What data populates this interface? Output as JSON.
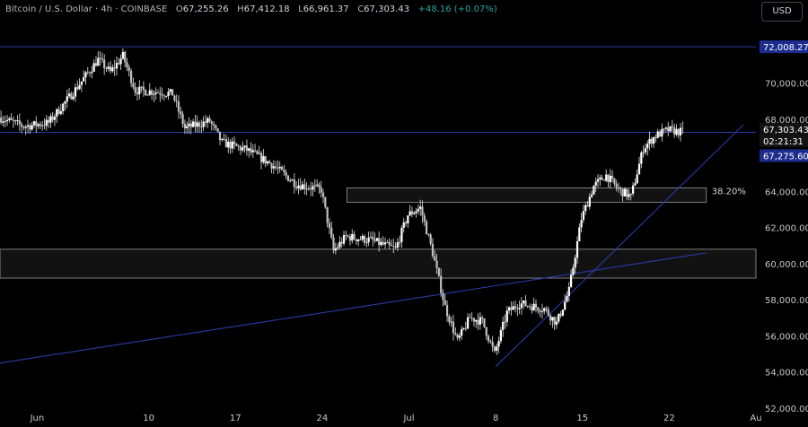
{
  "header": {
    "symbol": "Bitcoin / U.S. Dollar",
    "interval": "4h",
    "exchange": "COINBASE",
    "open_label": "O",
    "open": "67,255.26",
    "high_label": "H",
    "high": "67,412.18",
    "low_label": "L",
    "low": "66,961.37",
    "close_label": "C",
    "close": "67,303.43",
    "change": "+48.16 (+0.07%)"
  },
  "currency_button": "USD",
  "colors": {
    "background": "#000000",
    "up_candle": "#ffffff",
    "down_candle": "#ffffff",
    "trendline": "#2a3ba8",
    "zone_fill": "#141414",
    "zone_border": "#9a9a9a",
    "axis_text": "#c8c8c8",
    "price_badge": "#1c2d8f"
  },
  "chart_data": {
    "type": "candlestick",
    "x_range": [
      "2024-05-29",
      "2024-07-29"
    ],
    "y_range": [
      52000,
      74600
    ],
    "y_ticks": [
      {
        "value": 70000,
        "label": "70,000.00"
      },
      {
        "value": 68000,
        "label": "68,000.00"
      },
      {
        "value": 64000,
        "label": "64,000.00"
      },
      {
        "value": 62000,
        "label": "62,000.00"
      },
      {
        "value": 60000,
        "label": "60,000.00"
      },
      {
        "value": 58000,
        "label": "58,000.00"
      },
      {
        "value": 56000,
        "label": "56,000.00"
      },
      {
        "value": 54000,
        "label": "54,000.00"
      },
      {
        "value": 52000,
        "label": "52,000.00"
      }
    ],
    "x_ticks": [
      {
        "date": "2024-06-01",
        "label": "Jun"
      },
      {
        "date": "2024-06-10",
        "label": "10"
      },
      {
        "date": "2024-06-17",
        "label": "17"
      },
      {
        "date": "2024-06-24",
        "label": "24"
      },
      {
        "date": "2024-07-01",
        "label": "Jul"
      },
      {
        "date": "2024-07-08",
        "label": "8"
      },
      {
        "date": "2024-07-15",
        "label": "15"
      },
      {
        "date": "2024-07-22",
        "label": "22"
      },
      {
        "date": "2024-07-29",
        "label": "Au"
      }
    ],
    "price_badges": [
      {
        "value": 72008.27,
        "label": "72,008.27",
        "style": "blue"
      },
      {
        "value": 67303.43,
        "label": "67,303.43",
        "style": "dark"
      },
      {
        "value": 67303.43,
        "label": "02:21:31",
        "style": "dark-sub"
      },
      {
        "value": 67275.6,
        "label": "67,275.60",
        "style": "blue"
      }
    ],
    "horizontal_lines": [
      {
        "value": 72008.27
      },
      {
        "value": 67275.6
      }
    ],
    "zones": [
      {
        "x0": "2024-06-26",
        "x1": "2024-07-25",
        "y0": 63400,
        "y1": 64200,
        "label": "38.20%"
      },
      {
        "x0": "2024-05-29",
        "x1": "2024-07-29",
        "y0": 59200,
        "y1": 60800,
        "label": ""
      }
    ],
    "trendlines": [
      {
        "x0": "2024-05-29",
        "y0": 54500,
        "x1": "2024-07-25",
        "y1": 60600
      },
      {
        "x0": "2024-07-08",
        "y0": 54300,
        "x1": "2024-07-28",
        "y1": 67700
      }
    ],
    "anchors": [
      [
        "2024-05-29",
        68100
      ],
      [
        "2024-05-31",
        67600
      ],
      [
        "2024-06-02",
        67800
      ],
      [
        "2024-06-04",
        69500
      ],
      [
        "2024-06-06",
        71300
      ],
      [
        "2024-06-07",
        70600
      ],
      [
        "2024-06-08",
        71500
      ],
      [
        "2024-06-09",
        69600
      ],
      [
        "2024-06-11",
        69500
      ],
      [
        "2024-06-12",
        69400
      ],
      [
        "2024-06-13",
        67500
      ],
      [
        "2024-06-15",
        67900
      ],
      [
        "2024-06-16",
        66700
      ],
      [
        "2024-06-18",
        66300
      ],
      [
        "2024-06-20",
        65500
      ],
      [
        "2024-06-22",
        64400
      ],
      [
        "2024-06-24",
        64100
      ],
      [
        "2024-06-25",
        60700
      ],
      [
        "2024-06-26",
        61500
      ],
      [
        "2024-06-28",
        61300
      ],
      [
        "2024-06-30",
        60800
      ],
      [
        "2024-07-01",
        62700
      ],
      [
        "2024-07-02",
        63100
      ],
      [
        "2024-07-03",
        60600
      ],
      [
        "2024-07-04",
        57600
      ],
      [
        "2024-07-05",
        55700
      ],
      [
        "2024-07-06",
        57000
      ],
      [
        "2024-07-07",
        56800
      ],
      [
        "2024-07-08",
        55000
      ],
      [
        "2024-07-09",
        57300
      ],
      [
        "2024-07-10",
        57800
      ],
      [
        "2024-07-12",
        57500
      ],
      [
        "2024-07-13",
        56700
      ],
      [
        "2024-07-14",
        58500
      ],
      [
        "2024-07-15",
        62500
      ],
      [
        "2024-07-16",
        64300
      ],
      [
        "2024-07-17",
        64900
      ],
      [
        "2024-07-18",
        64100
      ],
      [
        "2024-07-19",
        63700
      ],
      [
        "2024-07-20",
        66400
      ],
      [
        "2024-07-21",
        67100
      ],
      [
        "2024-07-22",
        67400
      ],
      [
        "2024-07-23",
        67300
      ]
    ]
  }
}
